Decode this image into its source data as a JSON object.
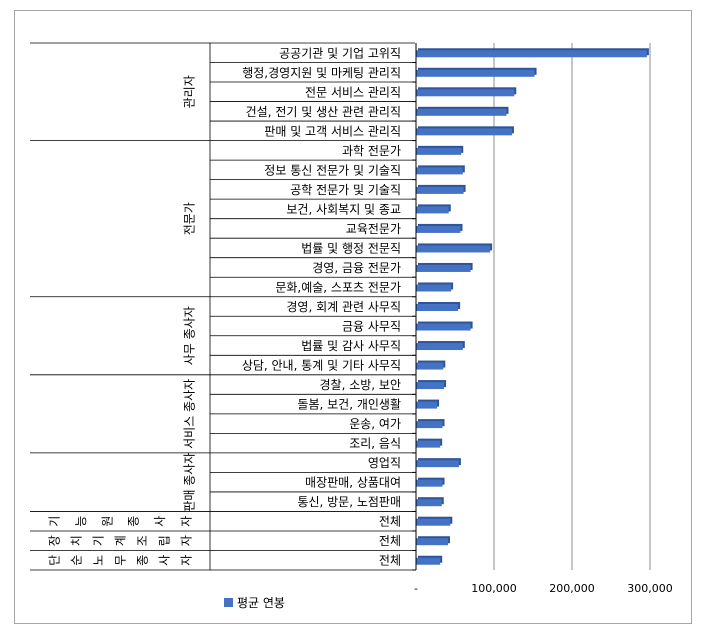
{
  "chart_data": {
    "type": "bar",
    "orientation": "horizontal",
    "groups": [
      {
        "label": "관리자",
        "rows": [
          0,
          4
        ]
      },
      {
        "label": "전문가",
        "rows": [
          5,
          12
        ]
      },
      {
        "label": "사무 종사자",
        "rows": [
          13,
          16
        ]
      },
      {
        "label": "서비스 종사자",
        "rows": [
          17,
          20
        ]
      },
      {
        "label": "판매 종사자",
        "rows": [
          21,
          23
        ]
      },
      {
        "label": "기능원 종사자",
        "rows": [
          24,
          24
        ]
      },
      {
        "label": "장치기계 조립자",
        "rows": [
          25,
          25
        ]
      },
      {
        "label": "단순노무 종사자",
        "rows": [
          26,
          26
        ]
      }
    ],
    "categories": [
      "공공기관 및 기업 고위직",
      "행정,경영지원 및 마케팅 관리직",
      "전문 서비스 관리직",
      "건설, 전기 및 생산 관련 관리직",
      "판매 및 고객 서비스 관리직",
      "과학 전문가",
      "정보 통신 전문가 및 기술직",
      "공학 전문가 및 기술직",
      "보건, 사회복지 및 종교",
      "교육전문가",
      "법률 및 행정 전문직",
      "경영, 금융 전문가",
      "문화,예술, 스포츠 전문가",
      "경영, 회계 관련 사무직",
      "금융 사무직",
      "법률 및 감사 사무직",
      "상담, 안내, 통계 및 기타 사무직",
      "경찰, 소방, 보안",
      "돌봄, 보건, 개인생활",
      "운송, 여가",
      "조리, 음식",
      "영업직",
      "매장판매, 상품대여",
      "통신, 방문, 노점판매",
      "전체",
      "전체",
      "전체"
    ],
    "series": [
      {
        "name": "평균 연봉",
        "color": "#4472c4",
        "values": [
          296000,
          152000,
          126000,
          116000,
          123000,
          58000,
          60000,
          61000,
          42000,
          57000,
          95000,
          70000,
          45000,
          54000,
          70000,
          60000,
          35000,
          36000,
          27000,
          34000,
          31000,
          55000,
          34000,
          33000,
          44000,
          41000,
          31000
        ]
      }
    ],
    "xlim": [
      0,
      300000
    ],
    "xticks": [
      0,
      100000,
      200000,
      300000
    ],
    "xtick_labels": [
      "-",
      "100,000",
      "200,000",
      "300,000"
    ],
    "grid": true,
    "legend_position": "bottom-left"
  }
}
